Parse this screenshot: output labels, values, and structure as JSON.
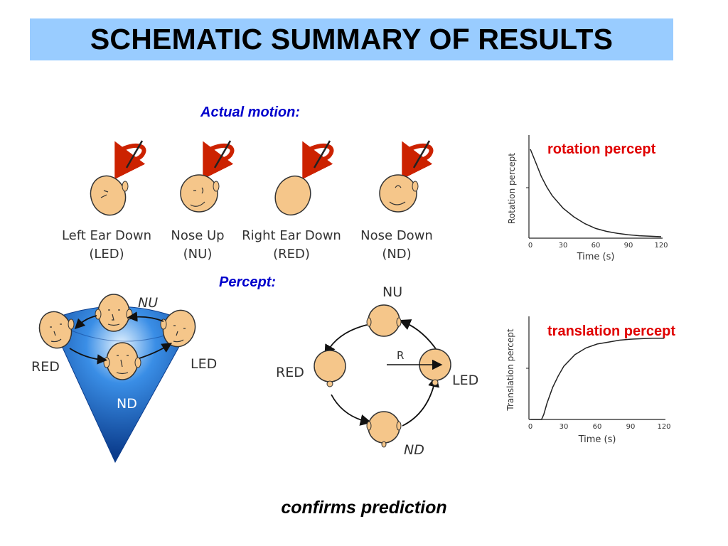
{
  "title": "SCHEMATIC SUMMARY OF RESULTS",
  "actual_motion_label": "Actual motion:",
  "percept_label": "Percept:",
  "footer": "confirms prediction",
  "colors": {
    "title_bg": "#99ccff",
    "heading_blue": "#0000cc",
    "percept_red": "#e00000",
    "skin": "#f5c68a",
    "arrow_red": "#cc2200",
    "cone_blue": "#1a66cc"
  },
  "actual_motion": {
    "heads": [
      {
        "label_line1": "Left Ear Down",
        "label_line2": "(LED)"
      },
      {
        "label_line1": "Nose Up",
        "label_line2": "(NU)"
      },
      {
        "label_line1": "Right Ear Down",
        "label_line2": "(RED)"
      },
      {
        "label_line1": "Nose Down",
        "label_line2": "(ND)"
      }
    ]
  },
  "cone_diagram": {
    "labels": {
      "nu": "NU",
      "red": "RED",
      "led": "LED",
      "nd": "ND"
    }
  },
  "circle_diagram": {
    "labels": {
      "nu": "NU",
      "red": "RED",
      "led": "LED",
      "nd": "ND",
      "r": "R"
    }
  },
  "rotation_chart": {
    "label": "rotation percept",
    "ylabel": "Rotation percept",
    "xlabel": "Time (s)",
    "ticks": [
      "0",
      "30",
      "60",
      "90",
      "120"
    ]
  },
  "translation_chart": {
    "label": "translation percept",
    "ylabel": "Translation percept",
    "xlabel": "Time (s)",
    "ticks": [
      "0",
      "30",
      "60",
      "90",
      "120"
    ]
  },
  "chart_data": [
    {
      "type": "line",
      "ylabel": "Rotation percept",
      "xlabel": "Time (s)",
      "xlim": [
        0,
        120
      ],
      "ylim": [
        0,
        1
      ],
      "x": [
        0,
        5,
        10,
        15,
        20,
        30,
        40,
        50,
        60,
        70,
        80,
        90,
        100,
        110,
        120
      ],
      "values": [
        0.92,
        0.78,
        0.64,
        0.53,
        0.44,
        0.31,
        0.22,
        0.15,
        0.1,
        0.07,
        0.05,
        0.035,
        0.025,
        0.02,
        0.015
      ]
    },
    {
      "type": "line",
      "ylabel": "Translation percept",
      "xlabel": "Time (s)",
      "xlim": [
        0,
        120
      ],
      "ylim": [
        0,
        1
      ],
      "x": [
        0,
        10,
        12,
        15,
        20,
        25,
        30,
        40,
        50,
        60,
        70,
        80,
        90,
        100,
        110,
        120
      ],
      "values": [
        0,
        0,
        0.05,
        0.17,
        0.33,
        0.45,
        0.55,
        0.67,
        0.74,
        0.78,
        0.8,
        0.82,
        0.83,
        0.835,
        0.84,
        0.84
      ]
    }
  ]
}
